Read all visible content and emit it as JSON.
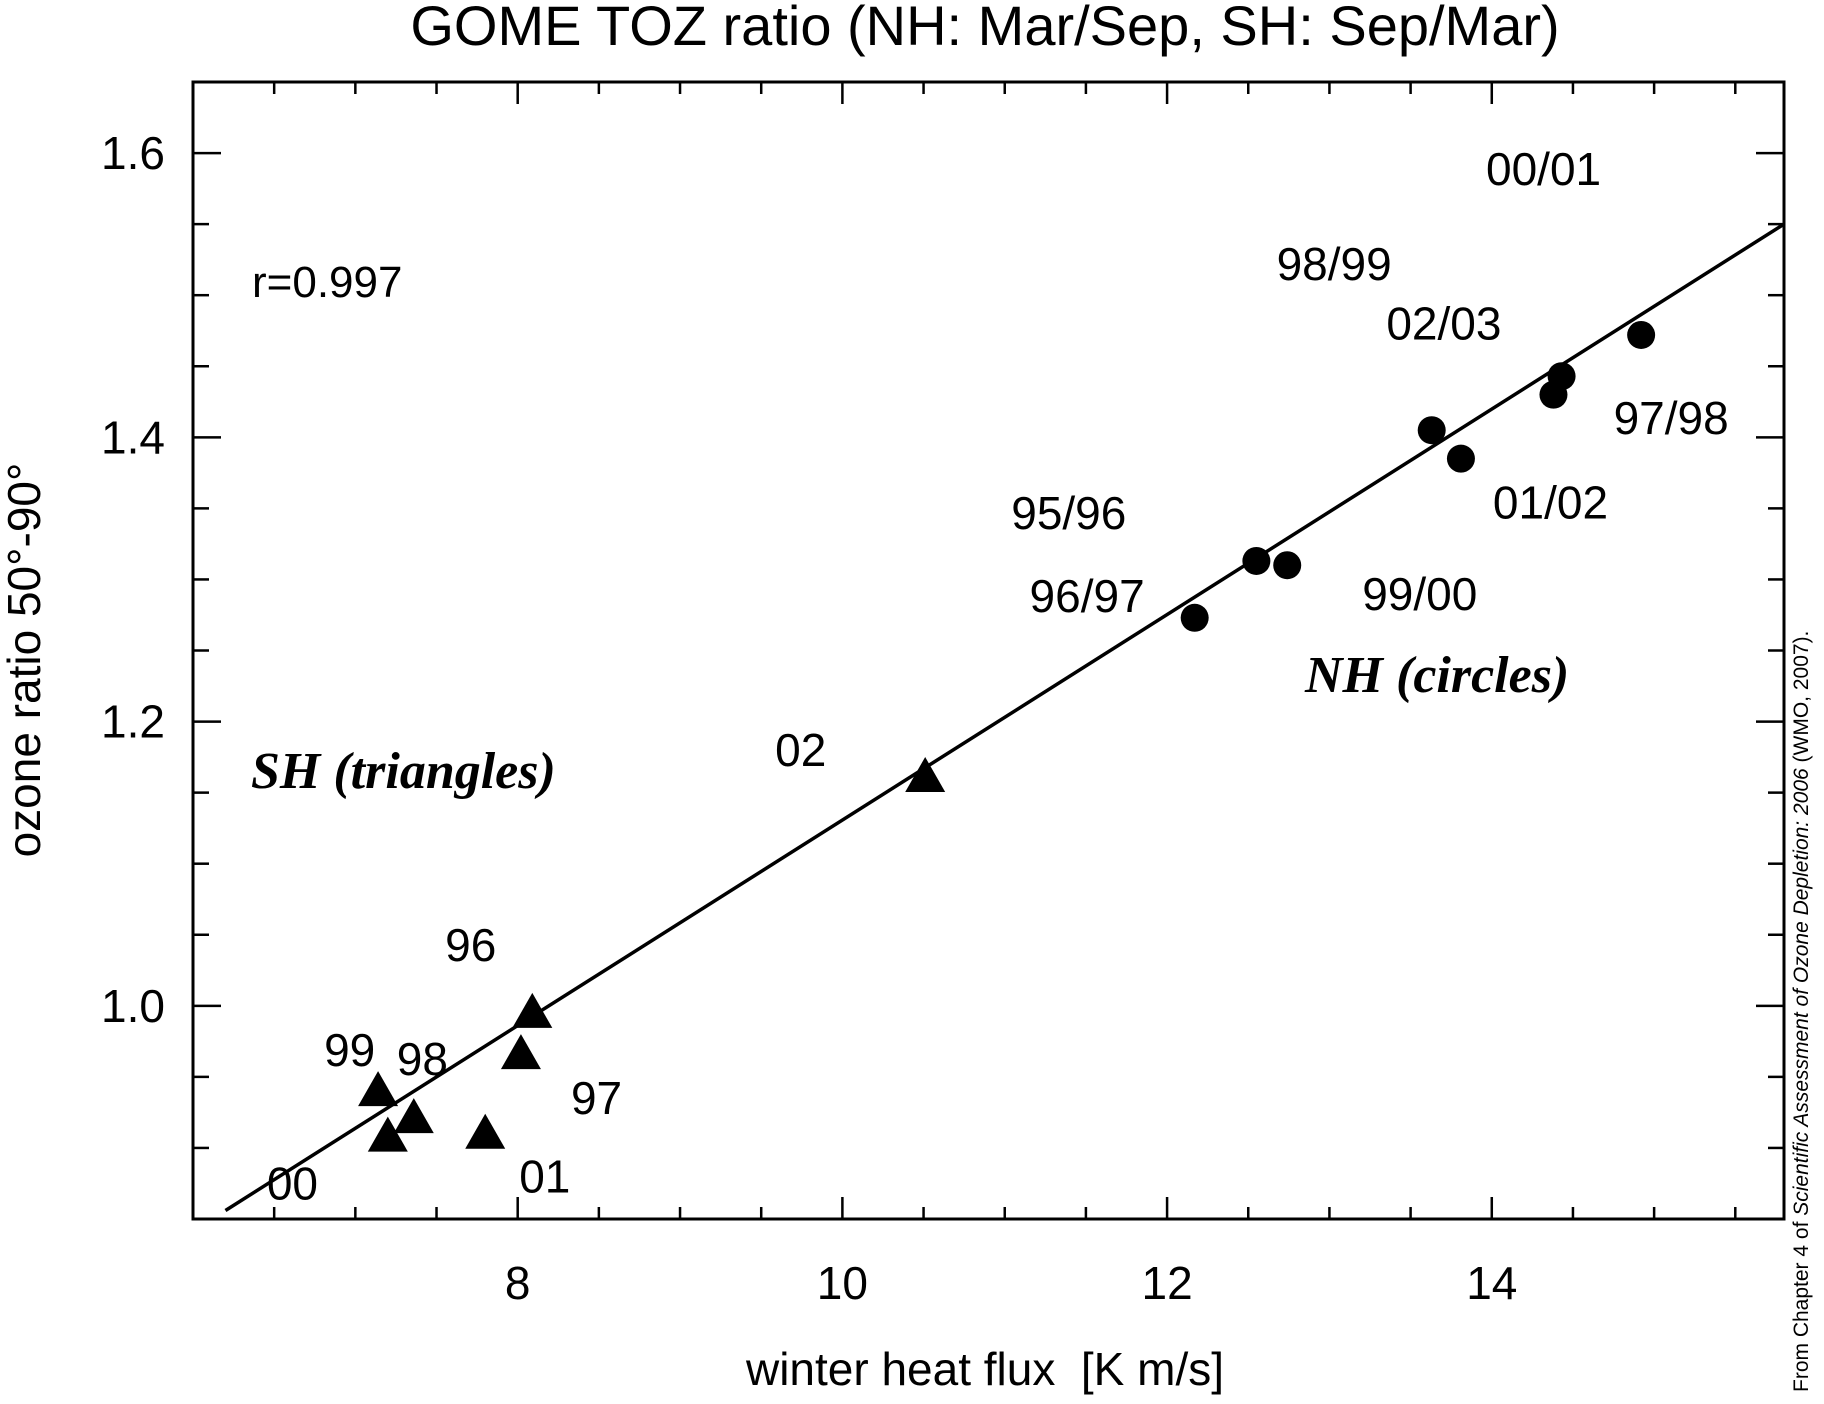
{
  "chart_data": {
    "type": "scatter",
    "title": "GOME TOZ ratio (NH: Mar/Sep, SH: Sep/Mar)",
    "xlabel": "winter heat flux  [K m/s]",
    "ylabel": "ozone ratio 50°-90°",
    "xlim": [
      6.0,
      15.8
    ],
    "ylim": [
      0.85,
      1.65
    ],
    "x_ticks": [
      8,
      10,
      12,
      14
    ],
    "x_tick_labels": [
      "8",
      "10",
      "12",
      "14"
    ],
    "y_ticks": [
      1.0,
      1.2,
      1.4,
      1.6
    ],
    "y_tick_labels": [
      "1.0",
      "1.2",
      "1.4",
      "1.6"
    ],
    "x_minor_step": 0.5,
    "y_minor_step": 0.05,
    "grid": false,
    "correlation_text": "r=0.997",
    "group_labels": {
      "nh": "NH (circles)",
      "sh": "SH (triangles)"
    },
    "credit": {
      "prefix": "From Chapter 4 of ",
      "italic": "Scientific Assessment of Ozone Depletion: 2006",
      "suffix": " (WMO, 2007)."
    },
    "fit_line": {
      "x": [
        6.2,
        15.8
      ],
      "y": [
        0.856,
        1.55
      ]
    },
    "nh": [
      {
        "label": "95/96",
        "x": 12.55,
        "y": 1.313
      },
      {
        "label": "96/97",
        "x": 12.17,
        "y": 1.273
      },
      {
        "label": "97/98",
        "x": 14.43,
        "y": 1.443
      },
      {
        "label": "98/99",
        "x": 13.63,
        "y": 1.405
      },
      {
        "label": "99/00",
        "x": 12.74,
        "y": 1.31
      },
      {
        "label": "00/01",
        "x": 14.92,
        "y": 1.472
      },
      {
        "label": "01/02",
        "x": 13.81,
        "y": 1.385
      },
      {
        "label": "02/03",
        "x": 14.38,
        "y": 1.43
      }
    ],
    "sh": [
      {
        "label": "96",
        "x": 8.09,
        "y": 0.995
      },
      {
        "label": "97",
        "x": 8.02,
        "y": 0.966
      },
      {
        "label": "98",
        "x": 7.36,
        "y": 0.921
      },
      {
        "label": "99",
        "x": 7.14,
        "y": 0.94
      },
      {
        "label": "00",
        "x": 7.2,
        "y": 0.908
      },
      {
        "label": "01",
        "x": 7.8,
        "y": 0.91
      },
      {
        "label": "02",
        "x": 10.51,
        "y": 1.161
      }
    ]
  }
}
